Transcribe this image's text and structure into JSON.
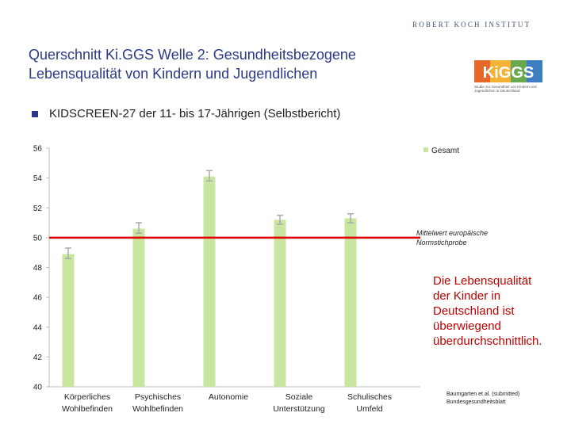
{
  "header": {
    "institute": "ROBERT KOCH INSTITUT",
    "title_line1": "Querschnitt Ki.GGS Welle 2: Gesundheitsbezogene",
    "title_line2": "Lebensqualität von Kindern und Jugendlichen",
    "logo_text": "KiGGS",
    "logo_caption": "Studie zur Gesundheit von Kindern und Jugendlichen in Deutschland"
  },
  "subtitle": "KIDSCREEN-27 der 11- bis 17-Jährigen (Selbstbericht)",
  "callout": {
    "lines": [
      "Die Lebensqualität",
      "der Kinder in",
      "Deutschland ist",
      "überwiegend",
      "überdurchschnittlich."
    ]
  },
  "citation": {
    "line1": "Baumgarten et al. (submitted)",
    "line2": "Bundesgesundheitsblatt"
  },
  "colors": {
    "bar": "#c9e6a0",
    "reference_line": "#e00000",
    "title": "#2a3a86",
    "callout": "#c00000"
  },
  "chart_data": {
    "type": "bar",
    "categories": [
      [
        "Körperliches",
        "Wohlbefinden"
      ],
      [
        "Psychisches",
        "Wohlbefinden"
      ],
      [
        "Autonomie"
      ],
      [
        "Soziale",
        "Unterstützung"
      ],
      [
        "Schulisches",
        "Umfeld"
      ]
    ],
    "series": [
      {
        "name": "Gesamt",
        "values": [
          48.9,
          50.6,
          54.1,
          51.2,
          51.3
        ]
      }
    ],
    "error_low": [
      48.6,
      50.3,
      53.8,
      50.9,
      51.0
    ],
    "error_high": [
      49.3,
      51.0,
      54.5,
      51.5,
      51.6
    ],
    "reference_value": 50,
    "reference_label": [
      "Mittelwert europäische",
      "Normstichprobe"
    ],
    "ylim": [
      40,
      56
    ],
    "yticks": [
      40,
      42,
      44,
      46,
      48,
      50,
      52,
      54,
      56
    ],
    "legend": "top-right"
  }
}
